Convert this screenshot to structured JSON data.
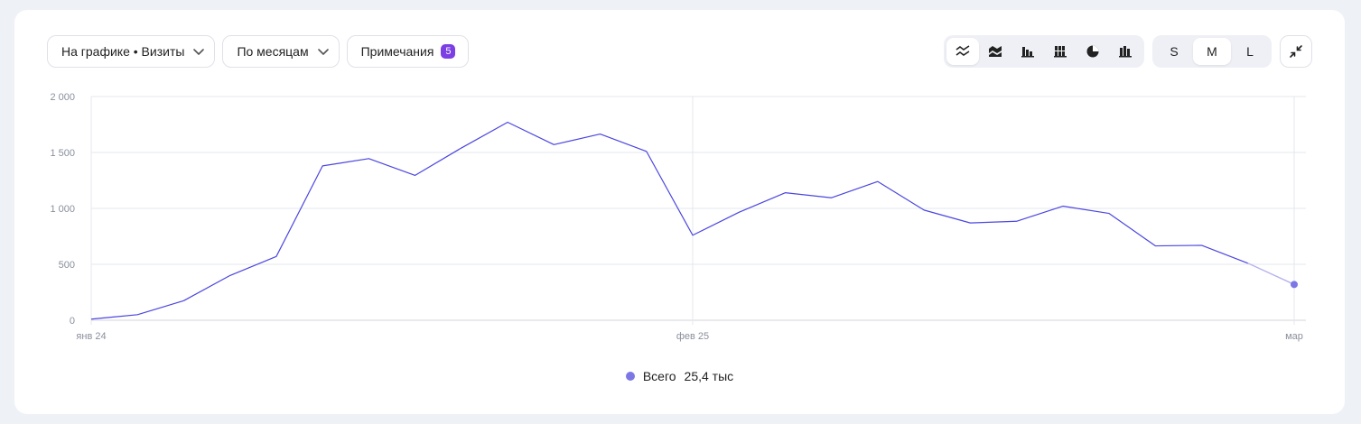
{
  "toolbar": {
    "metric_select": "На графике • Визиты",
    "period_select": "По месяцам",
    "notes_label": "Примечания",
    "notes_count": "5",
    "chart_type_icons": [
      "line-chart-icon",
      "stacked-area-icon",
      "bar-chart-icon",
      "stacked-bar-icon",
      "pie-chart-icon",
      "column-chart-icon"
    ],
    "active_chart_type": "line-chart-icon",
    "sizes": [
      "S",
      "M",
      "L"
    ],
    "active_size": "M",
    "collapse_icon": "collapse-arrows-icon"
  },
  "legend": {
    "label": "Всего",
    "value": "25,4 тыс"
  },
  "colors": {
    "line": "#4b46e0",
    "line_partial": "#b6b3ef",
    "dot": "#7b78e6",
    "grid": "#e6e7ec",
    "badge": "#7b3fe4"
  },
  "chart_data": {
    "type": "line",
    "series": [
      {
        "name": "Всего",
        "values": [
          10,
          50,
          175,
          400,
          570,
          1380,
          1445,
          1295,
          1540,
          1770,
          1570,
          1665,
          1510,
          760,
          965,
          1140,
          1095,
          1240,
          985,
          870,
          885,
          1020,
          955,
          665,
          670,
          510,
          320
        ]
      }
    ],
    "x_tick_labels": [
      "янв 24",
      "фев 25",
      "мар"
    ],
    "y_tick_labels": [
      "0",
      "500",
      "1 000",
      "1 500",
      "2 000"
    ],
    "ylim": [
      0,
      2000
    ],
    "partial_last_segment": true,
    "grid": true,
    "legend_position": "bottom-center"
  }
}
